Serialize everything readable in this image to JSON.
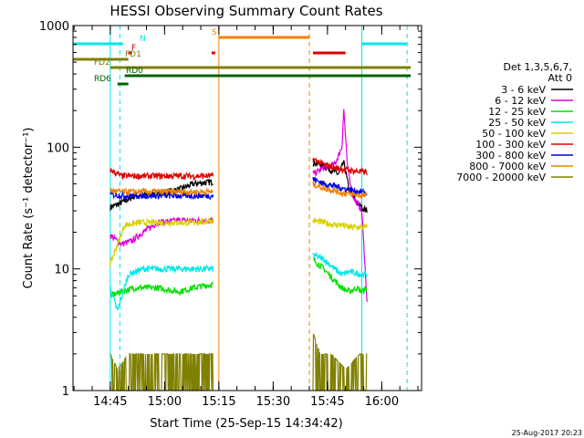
{
  "chart_data": {
    "type": "line",
    "title": "HESSI Observing Summary Count Rates",
    "xlabel": "Start Time (25-Sep-15 14:34:42)",
    "ylabel": "Count Rate (s⁻¹ detector⁻¹)",
    "yscale": "log",
    "ylim": [
      1,
      1000
    ],
    "xlim": [
      "14:34:42",
      "16:11:00"
    ],
    "x_ticks": [
      "14:45",
      "15:00",
      "15:15",
      "15:30",
      "15:45",
      "16:00"
    ],
    "y_ticks": [
      "1",
      "10",
      "100",
      "1000"
    ],
    "timestamp": "25-Aug-2017 20:23",
    "legend": {
      "position": "right",
      "header": [
        "Det 1,3,5,6,7,",
        "Att 0"
      ],
      "entries": [
        {
          "label": "3 - 6 keV",
          "color": "#000000"
        },
        {
          "label": "6 - 12 keV",
          "color": "#e000e0"
        },
        {
          "label": "12 - 25 keV",
          "color": "#00e000"
        },
        {
          "label": "25 - 50 keV",
          "color": "#00e8e8"
        },
        {
          "label": "50 - 100 keV",
          "color": "#d8d000"
        },
        {
          "label": "100 - 300 keV",
          "color": "#e00000"
        },
        {
          "label": "300 - 800 keV",
          "color": "#0000e0"
        },
        {
          "label": "800 - 7000 keV",
          "color": "#f08000"
        },
        {
          "label": "7000 - 20000 keV",
          "color": "#808000"
        }
      ]
    },
    "flags": [
      {
        "label": "N",
        "color": "#00e8e8",
        "segments": [
          [
            "14:34:42",
            "14:48:30"
          ],
          [
            "15:54:30",
            "16:07:00"
          ]
        ]
      },
      {
        "label": "S",
        "color": "#f08000",
        "segments": [
          [
            "15:15:00",
            "15:40:00"
          ]
        ]
      },
      {
        "label": "F",
        "color": "#e00000",
        "segments": [
          [
            "14:50:00",
            "14:51:00"
          ],
          [
            "15:13:00",
            "15:14:00"
          ],
          [
            "15:41:00",
            "15:50:00"
          ]
        ]
      },
      {
        "label": "FD1",
        "color": "#808000",
        "segments": [
          [
            "14:34:42",
            "14:50:00"
          ]
        ]
      },
      {
        "label": "FD2",
        "color": "#808000",
        "segments": [
          [
            "14:45:00",
            "16:08:00"
          ]
        ]
      },
      {
        "label": "RD0",
        "color": "#006400",
        "segments": [
          [
            "14:49:00",
            "16:08:00"
          ]
        ]
      },
      {
        "label": "RD6",
        "color": "#006400",
        "segments": [
          [
            "14:47:00",
            "14:50:00"
          ]
        ]
      }
    ],
    "vlines": [
      {
        "time": "14:34:42",
        "color": "#00e8e8",
        "style": "solid"
      },
      {
        "time": "14:47:40",
        "color": "#00e8e8",
        "style": "dashed"
      },
      {
        "time": "14:45:00",
        "color": "#00e8e8",
        "style": "solid"
      },
      {
        "time": "15:15:00",
        "color": "#f08000",
        "style": "solid"
      },
      {
        "time": "15:40:00",
        "color": "#f08000",
        "style": "dashed"
      },
      {
        "time": "15:54:30",
        "color": "#00e8e8",
        "style": "solid"
      },
      {
        "time": "16:07:00",
        "color": "#00e8e8",
        "style": "dashed"
      }
    ],
    "segments": [
      {
        "start": "14:45:00",
        "end": "15:13:30"
      },
      {
        "start": "15:41:00",
        "end": "15:56:00"
      }
    ],
    "series": [
      {
        "name": "3 - 6 keV",
        "color": "#000000",
        "times": [
          "14:45:00",
          "14:48:00",
          "14:52:00",
          "14:58:00",
          "15:04:00",
          "15:08:00",
          "15:13:30",
          "15:41:00",
          "15:43:00",
          "15:46:00",
          "15:48:00",
          "15:49:30",
          "15:51:00",
          "15:53:00",
          "15:54:30",
          "15:56:00"
        ],
        "values": [
          32,
          35,
          40,
          42,
          45,
          50,
          52,
          75,
          72,
          65,
          60,
          75,
          45,
          35,
          32,
          30
        ]
      },
      {
        "name": "6 - 12 keV",
        "color": "#e000e0",
        "times": [
          "14:45:00",
          "14:48:00",
          "14:51:00",
          "14:54:00",
          "14:58:00",
          "15:04:00",
          "15:08:00",
          "15:13:30",
          "15:41:00",
          "15:44:00",
          "15:47:00",
          "15:49:00",
          "15:49:30",
          "15:50:30",
          "15:52:00",
          "15:54:30",
          "15:56:00"
        ],
        "values": [
          19,
          16,
          17,
          20,
          24,
          25,
          25,
          25,
          60,
          68,
          72,
          100,
          210,
          70,
          40,
          30,
          5
        ]
      },
      {
        "name": "12 - 25 keV",
        "color": "#00e000",
        "times": [
          "14:45:00",
          "14:48:00",
          "14:52:00",
          "14:58:00",
          "15:04:00",
          "15:08:00",
          "15:13:30",
          "15:41:00",
          "15:44:00",
          "15:47:00",
          "15:49:00",
          "15:51:00",
          "15:53:00",
          "15:54:30",
          "15:56:00"
        ],
        "values": [
          6,
          6.5,
          7,
          7,
          6.5,
          7,
          7.5,
          12,
          10,
          8,
          7,
          6.5,
          7,
          6.5,
          7
        ]
      },
      {
        "name": "25 - 50 keV",
        "color": "#00e8e8",
        "times": [
          "14:45:00",
          "14:47:00",
          "14:50:00",
          "14:54:00",
          "15:00:00",
          "15:06:00",
          "15:13:30",
          "15:41:00",
          "15:44:00",
          "15:47:00",
          "15:49:00",
          "15:51:00",
          "15:54:30",
          "15:56:00"
        ],
        "values": [
          7,
          4.5,
          9,
          10,
          10,
          10,
          10,
          13,
          12,
          10,
          9,
          9.5,
          9,
          9
        ]
      },
      {
        "name": "50 - 100 keV",
        "color": "#d8d000",
        "times": [
          "14:45:00",
          "14:49:00",
          "14:53:00",
          "14:58:00",
          "15:04:00",
          "15:08:00",
          "15:13:30",
          "15:41:00",
          "15:44:00",
          "15:47:00",
          "15:49:00",
          "15:51:00",
          "15:54:30",
          "15:56:00"
        ],
        "values": [
          11,
          23,
          24,
          24,
          24,
          24,
          25,
          25,
          24,
          23,
          23,
          22,
          22,
          22
        ]
      },
      {
        "name": "100 - 300 keV",
        "color": "#e00000",
        "times": [
          "14:45:00",
          "14:48:00",
          "14:52:00",
          "14:58:00",
          "15:04:00",
          "15:08:00",
          "15:13:30",
          "15:41:00",
          "15:44:00",
          "15:47:00",
          "15:49:00",
          "15:52:00",
          "15:54:30",
          "15:56:00"
        ],
        "values": [
          65,
          58,
          58,
          58,
          58,
          58,
          58,
          80,
          72,
          68,
          66,
          64,
          63,
          62
        ]
      },
      {
        "name": "300 - 800 keV",
        "color": "#0000e0",
        "times": [
          "14:45:00",
          "14:48:00",
          "14:52:00",
          "14:58:00",
          "15:04:00",
          "15:08:00",
          "15:13:30",
          "15:41:00",
          "15:44:00",
          "15:47:00",
          "15:49:00",
          "15:52:00",
          "15:54:30",
          "15:56:00"
        ],
        "values": [
          41,
          40,
          40,
          40,
          40,
          40,
          40,
          55,
          50,
          48,
          46,
          44,
          43,
          42
        ]
      },
      {
        "name": "800 - 7000 keV",
        "color": "#f08000",
        "times": [
          "14:45:00",
          "14:48:00",
          "14:52:00",
          "14:58:00",
          "15:04:00",
          "15:08:00",
          "15:13:30",
          "15:41:00",
          "15:44:00",
          "15:47:00",
          "15:49:00",
          "15:52:00",
          "15:54:30",
          "15:56:00"
        ],
        "values": [
          44,
          43,
          43,
          43,
          43,
          43,
          43,
          50,
          46,
          44,
          42,
          41,
          40,
          40
        ]
      },
      {
        "name": "7000 - 20000 keV",
        "color": "#808000",
        "times": [
          "14:45:00",
          "14:47:00",
          "14:50:00",
          "15:00:00",
          "15:10:00",
          "15:13:30",
          "15:41:00",
          "15:43:00",
          "15:46:00",
          "15:50:00",
          "15:54:00",
          "15:56:00"
        ],
        "values": [
          2,
          1.5,
          2,
          2,
          2,
          2,
          3,
          2,
          2,
          1.5,
          2,
          2
        ]
      }
    ]
  }
}
